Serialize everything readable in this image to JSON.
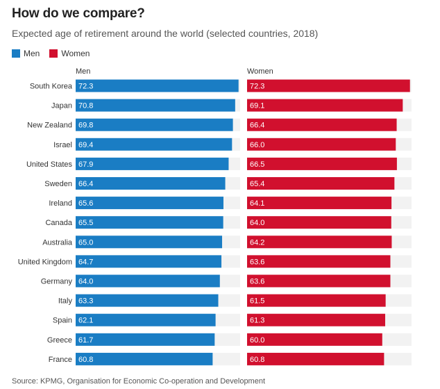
{
  "header": {
    "title": "How do we compare?",
    "subtitle": "Expected age of retirement around the world (selected countries, 2018)"
  },
  "legend": {
    "men_label": "Men",
    "women_label": "Women"
  },
  "panels": {
    "men_label": "Men",
    "women_label": "Women"
  },
  "source": "Source: KPMG, Organisation for Economic Co-operation and Development",
  "colors": {
    "men": "#1a7dc4",
    "women": "#d1102e",
    "track": "#f2f2f2"
  },
  "chart_data": {
    "type": "bar",
    "orientation": "horizontal",
    "categories": [
      "South Korea",
      "Japan",
      "New Zealand",
      "Israel",
      "United States",
      "Sweden",
      "Ireland",
      "Canada",
      "Australia",
      "United Kingdom",
      "Germany",
      "Italy",
      "Spain",
      "Greece",
      "France"
    ],
    "series": [
      {
        "name": "Men",
        "values": [
          72.3,
          70.8,
          69.8,
          69.4,
          67.9,
          66.4,
          65.6,
          65.5,
          65.0,
          64.7,
          64.0,
          63.3,
          62.1,
          61.7,
          60.8
        ],
        "labels": [
          "72.3",
          "70.8",
          "69.8",
          "69.4",
          "67.9",
          "66.4",
          "65.6",
          "65.5",
          "65.0",
          "64.7",
          "64.0",
          "63.3",
          "62.1",
          "61.7",
          "60.8"
        ]
      },
      {
        "name": "Women",
        "values": [
          72.3,
          69.1,
          66.4,
          66.0,
          66.5,
          65.4,
          64.1,
          64.0,
          64.2,
          63.6,
          63.6,
          61.5,
          61.3,
          60.0,
          60.8
        ],
        "labels": [
          "72.3",
          "69.1",
          "66.4",
          "66.0",
          "66.5",
          "65.4",
          "64.1",
          "64.0",
          "64.2",
          "63.6",
          "63.6",
          "61.5",
          "61.3",
          "60.0",
          "60.8"
        ]
      }
    ],
    "title": "How do we compare?",
    "subtitle": "Expected age of retirement around the world (selected countries, 2018)",
    "xlim": [
      0,
      73
    ],
    "grid": false,
    "legend_position": "top-left"
  }
}
